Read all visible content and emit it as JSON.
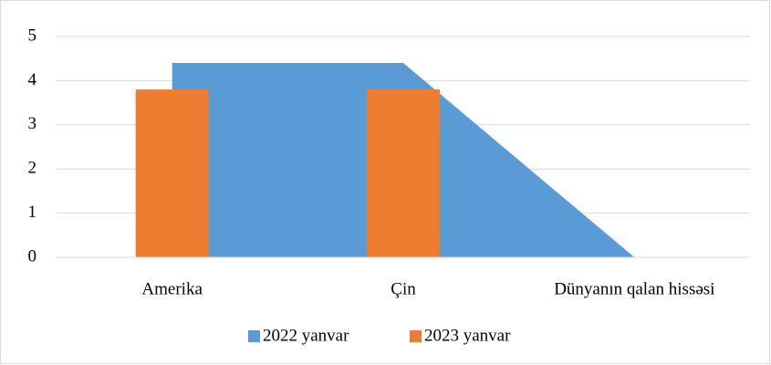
{
  "chart_data": {
    "type": "bar",
    "categories": [
      "Amerika",
      "Çin",
      "Dünyanın qalan hissəsi"
    ],
    "series": [
      {
        "name": "2022 yanvar",
        "type": "area",
        "color": "#5b9bd5",
        "values": [
          4.4,
          4.4,
          0
        ]
      },
      {
        "name": "2023 yanvar",
        "type": "bar",
        "color": "#ed7d31",
        "values": [
          3.8,
          3.8,
          0
        ]
      }
    ],
    "ylim": [
      0,
      5
    ],
    "yticks": [
      0,
      1,
      2,
      3,
      4,
      5
    ],
    "grid": true,
    "legend": "bottom"
  }
}
